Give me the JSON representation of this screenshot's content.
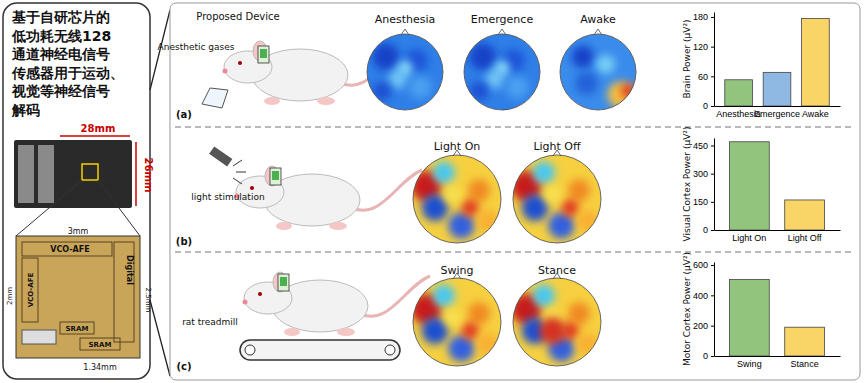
{
  "left_panel": {
    "title_lines": [
      "基于自研芯片的",
      "低功耗无线128",
      "通道神经电信号",
      "传感器用于运动、",
      "视觉等神经信号",
      "解码"
    ],
    "board": {
      "width": "28mm",
      "height": "26mm"
    },
    "chip": {
      "width": "3mm",
      "left_height": "2mm",
      "right_height": "2.5mm",
      "bottom_width": "1.34mm",
      "blocks": [
        "VCO-AFE",
        "VCO-AFE",
        "Digital",
        "SRAM",
        "SRAM"
      ]
    }
  },
  "panels": [
    {
      "label": "(a)",
      "annotations": [
        "Proposed Device",
        "Anesthetic gases"
      ],
      "maps": [
        "Anesthesia",
        "Emergence",
        "Awake"
      ]
    },
    {
      "label": "(b)",
      "annotations": [
        "light stimulation"
      ],
      "maps": [
        "Light On",
        "Light Off"
      ]
    },
    {
      "label": "(c)",
      "annotations": [
        "rat treadmill"
      ],
      "maps": [
        "Swing",
        "Stance"
      ]
    }
  ],
  "chart_data": [
    {
      "type": "bar",
      "y_label": "Brain Power (μV²)",
      "categories": [
        "Anesthesia",
        "Emergence",
        "Awake"
      ],
      "values": [
        53,
        68,
        177
      ],
      "colors": [
        "#93c47d",
        "#8fb8e3",
        "#f9d466"
      ],
      "ylim": [
        0,
        190
      ],
      "yticks": [
        0,
        60,
        120,
        180
      ]
    },
    {
      "type": "bar",
      "y_label": "Visual Cortex Power (μV²)",
      "categories": [
        "Light On",
        "Light Off"
      ],
      "values": [
        470,
        160
      ],
      "colors": [
        "#93c47d",
        "#f9d466"
      ],
      "ylim": [
        0,
        490
      ],
      "yticks": [
        0,
        150,
        300,
        450
      ]
    },
    {
      "type": "bar",
      "y_label": "Motor Cortex Power (μV²)",
      "categories": [
        "Swing",
        "Stance"
      ],
      "values": [
        505,
        190
      ],
      "colors": [
        "#93c47d",
        "#f9d466"
      ],
      "ylim": [
        0,
        620
      ],
      "yticks": [
        0,
        200,
        400,
        600
      ]
    }
  ]
}
